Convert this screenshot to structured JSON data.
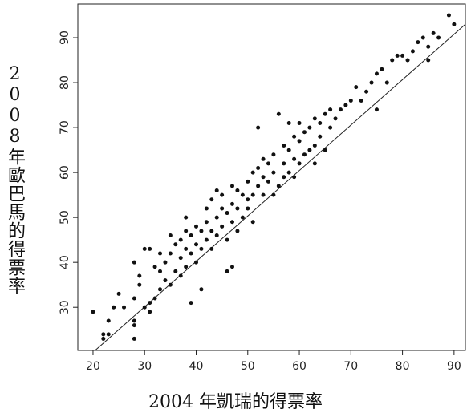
{
  "chart_data": {
    "type": "scatter",
    "xlabel": "2004 年凱瑞的得票率",
    "ylabel": "2008年歐巴馬的得票率",
    "color": "#111111",
    "x": [
      20,
      22,
      22,
      23,
      23,
      24,
      25,
      26,
      28,
      28,
      28,
      28,
      28,
      29,
      29,
      30,
      30,
      31,
      31,
      31,
      32,
      32,
      33,
      33,
      33,
      34,
      34,
      35,
      35,
      35,
      36,
      36,
      37,
      37,
      37,
      38,
      38,
      38,
      38,
      39,
      39,
      39,
      40,
      40,
      40,
      41,
      41,
      41,
      42,
      42,
      42,
      43,
      43,
      43,
      44,
      44,
      44,
      45,
      45,
      45,
      46,
      46,
      46,
      47,
      47,
      47,
      47,
      48,
      48,
      48,
      49,
      49,
      50,
      50,
      50,
      51,
      51,
      51,
      52,
      52,
      52,
      53,
      53,
      53,
      54,
      54,
      55,
      55,
      55,
      56,
      56,
      57,
      57,
      57,
      58,
      58,
      58,
      59,
      59,
      59,
      60,
      60,
      60,
      61,
      61,
      62,
      62,
      63,
      63,
      63,
      64,
      64,
      65,
      65,
      66,
      66,
      67,
      68,
      69,
      70,
      71,
      72,
      73,
      74,
      75,
      75,
      76,
      77,
      78,
      79,
      80,
      81,
      82,
      83,
      84,
      85,
      85,
      86,
      87,
      89,
      90
    ],
    "values": [
      29,
      23,
      24,
      24,
      27,
      30,
      33,
      30,
      23,
      26,
      27,
      32,
      40,
      35,
      37,
      30,
      43,
      43,
      29,
      31,
      32,
      39,
      34,
      38,
      42,
      36,
      40,
      35,
      42,
      46,
      38,
      44,
      37,
      41,
      45,
      39,
      43,
      47,
      50,
      31,
      42,
      46,
      40,
      44,
      48,
      34,
      43,
      47,
      45,
      49,
      52,
      43,
      47,
      54,
      46,
      50,
      56,
      48,
      52,
      55,
      38,
      45,
      51,
      39,
      49,
      53,
      57,
      47,
      52,
      56,
      50,
      55,
      52,
      58,
      54,
      49,
      55,
      60,
      57,
      61,
      70,
      55,
      59,
      63,
      58,
      62,
      55,
      60,
      64,
      57,
      73,
      59,
      62,
      66,
      60,
      65,
      71,
      59,
      63,
      68,
      62,
      67,
      71,
      64,
      69,
      65,
      70,
      62,
      66,
      72,
      68,
      71,
      65,
      73,
      70,
      74,
      72,
      74,
      75,
      76,
      79,
      76,
      78,
      80,
      74,
      82,
      83,
      80,
      85,
      86,
      86,
      85,
      87,
      89,
      90,
      85,
      88,
      91,
      90,
      95,
      93
    ],
    "reference_line": {
      "x": [
        20.4,
        92.2
      ],
      "y": [
        20.4,
        93
      ]
    },
    "xlim": [
      17.05,
      92.2
    ],
    "ylim": [
      20.4,
      97.5
    ],
    "xticks": [
      20,
      30,
      40,
      50,
      60,
      70,
      80,
      90
    ],
    "yticks": [
      30,
      40,
      50,
      60,
      70,
      80,
      90
    ]
  }
}
